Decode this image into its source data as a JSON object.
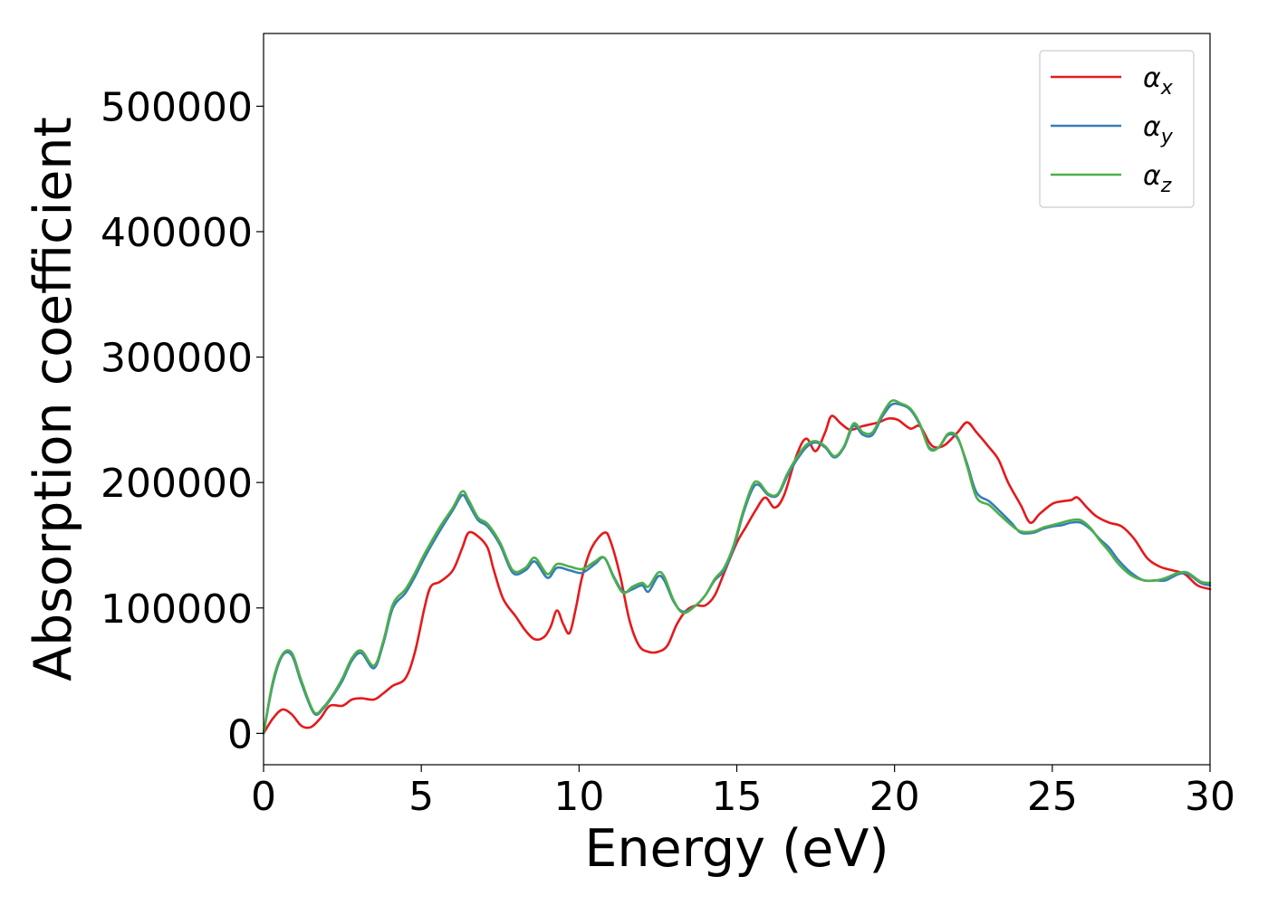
{
  "chart_data": {
    "type": "line",
    "title": "",
    "xlabel": "Energy (eV)",
    "ylabel": "Absorption coefficient",
    "xlim": [
      0,
      30
    ],
    "ylim": [
      -25000,
      558000
    ],
    "xticks": [
      0,
      5,
      10,
      15,
      20,
      25,
      30
    ],
    "yticks": [
      0,
      100000,
      200000,
      300000,
      400000,
      500000
    ],
    "grid": false,
    "legend_position": "top-right",
    "series": [
      {
        "name": "αx",
        "label_base": "α",
        "label_sub": "x",
        "color": "#e41a1c",
        "points": [
          [
            0,
            0
          ],
          [
            0.3,
            12000
          ],
          [
            0.6,
            19000
          ],
          [
            0.9,
            15000
          ],
          [
            1.2,
            6000
          ],
          [
            1.5,
            5000
          ],
          [
            1.8,
            12000
          ],
          [
            2.1,
            22000
          ],
          [
            2.5,
            22000
          ],
          [
            2.8,
            27000
          ],
          [
            3.1,
            28000
          ],
          [
            3.5,
            27000
          ],
          [
            3.8,
            32000
          ],
          [
            4.1,
            38000
          ],
          [
            4.5,
            44000
          ],
          [
            4.8,
            65000
          ],
          [
            5.1,
            100000
          ],
          [
            5.3,
            117000
          ],
          [
            5.6,
            121000
          ],
          [
            6.0,
            130000
          ],
          [
            6.3,
            148000
          ],
          [
            6.5,
            160000
          ],
          [
            6.8,
            157000
          ],
          [
            7.1,
            148000
          ],
          [
            7.3,
            130000
          ],
          [
            7.6,
            107000
          ],
          [
            8.0,
            93000
          ],
          [
            8.3,
            82000
          ],
          [
            8.6,
            75000
          ],
          [
            8.9,
            77000
          ],
          [
            9.1,
            85000
          ],
          [
            9.3,
            98000
          ],
          [
            9.5,
            87000
          ],
          [
            9.7,
            80000
          ],
          [
            9.9,
            100000
          ],
          [
            10.1,
            125000
          ],
          [
            10.4,
            148000
          ],
          [
            10.8,
            160000
          ],
          [
            11.0,
            153000
          ],
          [
            11.3,
            126000
          ],
          [
            11.6,
            90000
          ],
          [
            11.9,
            70000
          ],
          [
            12.2,
            65000
          ],
          [
            12.5,
            65000
          ],
          [
            12.8,
            70000
          ],
          [
            13.1,
            87000
          ],
          [
            13.4,
            98000
          ],
          [
            13.7,
            102000
          ],
          [
            14.0,
            102000
          ],
          [
            14.3,
            110000
          ],
          [
            14.6,
            128000
          ],
          [
            15.0,
            152000
          ],
          [
            15.3,
            165000
          ],
          [
            15.6,
            178000
          ],
          [
            15.9,
            188000
          ],
          [
            16.2,
            180000
          ],
          [
            16.5,
            190000
          ],
          [
            16.9,
            222000
          ],
          [
            17.2,
            235000
          ],
          [
            17.5,
            225000
          ],
          [
            17.8,
            240000
          ],
          [
            18.0,
            253000
          ],
          [
            18.3,
            247000
          ],
          [
            18.6,
            242000
          ],
          [
            19.0,
            245000
          ],
          [
            19.5,
            248000
          ],
          [
            19.8,
            251000
          ],
          [
            20.1,
            250000
          ],
          [
            20.5,
            243000
          ],
          [
            20.8,
            245000
          ],
          [
            21.1,
            232000
          ],
          [
            21.3,
            228000
          ],
          [
            21.6,
            230000
          ],
          [
            22.0,
            240000
          ],
          [
            22.3,
            248000
          ],
          [
            22.6,
            240000
          ],
          [
            23.0,
            228000
          ],
          [
            23.3,
            218000
          ],
          [
            23.6,
            200000
          ],
          [
            24.0,
            182000
          ],
          [
            24.3,
            168000
          ],
          [
            24.6,
            175000
          ],
          [
            25.0,
            183000
          ],
          [
            25.3,
            185000
          ],
          [
            25.6,
            186000
          ],
          [
            25.8,
            188000
          ],
          [
            26.1,
            180000
          ],
          [
            26.4,
            173000
          ],
          [
            26.8,
            168000
          ],
          [
            27.2,
            165000
          ],
          [
            27.6,
            155000
          ],
          [
            28.0,
            140000
          ],
          [
            28.4,
            133000
          ],
          [
            28.8,
            130000
          ],
          [
            29.2,
            127000
          ],
          [
            29.6,
            118000
          ],
          [
            30.0,
            115000
          ]
        ]
      },
      {
        "name": "αy",
        "label_base": "α",
        "label_sub": "y",
        "color": "#377eb8",
        "points": [
          [
            0,
            0
          ],
          [
            0.3,
            40000
          ],
          [
            0.6,
            62000
          ],
          [
            0.9,
            62000
          ],
          [
            1.2,
            40000
          ],
          [
            1.6,
            16000
          ],
          [
            1.9,
            20000
          ],
          [
            2.2,
            30000
          ],
          [
            2.5,
            42000
          ],
          [
            2.8,
            58000
          ],
          [
            3.1,
            64000
          ],
          [
            3.5,
            52000
          ],
          [
            3.8,
            72000
          ],
          [
            4.1,
            100000
          ],
          [
            4.5,
            112000
          ],
          [
            4.8,
            125000
          ],
          [
            5.1,
            140000
          ],
          [
            5.6,
            162000
          ],
          [
            6.0,
            178000
          ],
          [
            6.3,
            190000
          ],
          [
            6.5,
            183000
          ],
          [
            6.8,
            170000
          ],
          [
            7.1,
            165000
          ],
          [
            7.5,
            150000
          ],
          [
            7.9,
            128000
          ],
          [
            8.3,
            130000
          ],
          [
            8.6,
            137000
          ],
          [
            9.0,
            124000
          ],
          [
            9.3,
            132000
          ],
          [
            9.7,
            130000
          ],
          [
            10.1,
            128000
          ],
          [
            10.5,
            135000
          ],
          [
            10.8,
            140000
          ],
          [
            11.1,
            125000
          ],
          [
            11.4,
            113000
          ],
          [
            11.7,
            115000
          ],
          [
            12.0,
            118000
          ],
          [
            12.2,
            113000
          ],
          [
            12.5,
            125000
          ],
          [
            12.7,
            122000
          ],
          [
            13.0,
            105000
          ],
          [
            13.3,
            97000
          ],
          [
            13.7,
            102000
          ],
          [
            14.0,
            110000
          ],
          [
            14.3,
            122000
          ],
          [
            14.6,
            130000
          ],
          [
            14.9,
            148000
          ],
          [
            15.2,
            175000
          ],
          [
            15.5,
            195000
          ],
          [
            15.7,
            198000
          ],
          [
            16.0,
            190000
          ],
          [
            16.3,
            190000
          ],
          [
            16.6,
            205000
          ],
          [
            16.9,
            218000
          ],
          [
            17.2,
            228000
          ],
          [
            17.5,
            232000
          ],
          [
            17.8,
            228000
          ],
          [
            18.1,
            220000
          ],
          [
            18.4,
            228000
          ],
          [
            18.7,
            245000
          ],
          [
            19.0,
            238000
          ],
          [
            19.3,
            238000
          ],
          [
            19.6,
            252000
          ],
          [
            19.9,
            262000
          ],
          [
            20.2,
            262000
          ],
          [
            20.5,
            258000
          ],
          [
            20.8,
            246000
          ],
          [
            21.1,
            228000
          ],
          [
            21.4,
            228000
          ],
          [
            21.7,
            238000
          ],
          [
            22.0,
            235000
          ],
          [
            22.3,
            215000
          ],
          [
            22.6,
            192000
          ],
          [
            23.0,
            185000
          ],
          [
            23.3,
            178000
          ],
          [
            23.7,
            168000
          ],
          [
            24.0,
            160000
          ],
          [
            24.4,
            160000
          ],
          [
            24.7,
            163000
          ],
          [
            25.0,
            165000
          ],
          [
            25.3,
            166000
          ],
          [
            25.6,
            168000
          ],
          [
            25.9,
            168000
          ],
          [
            26.2,
            163000
          ],
          [
            26.5,
            155000
          ],
          [
            26.8,
            148000
          ],
          [
            27.1,
            138000
          ],
          [
            27.5,
            128000
          ],
          [
            27.9,
            122000
          ],
          [
            28.3,
            122000
          ],
          [
            28.6,
            122000
          ],
          [
            29.0,
            127000
          ],
          [
            29.3,
            127000
          ],
          [
            29.7,
            120000
          ],
          [
            30.0,
            118000
          ]
        ]
      },
      {
        "name": "αz",
        "label_base": "α",
        "label_sub": "z",
        "color": "#4daf4a",
        "points": [
          [
            0,
            0
          ],
          [
            0.3,
            42000
          ],
          [
            0.6,
            63000
          ],
          [
            0.9,
            64000
          ],
          [
            1.2,
            42000
          ],
          [
            1.6,
            17000
          ],
          [
            1.9,
            21000
          ],
          [
            2.2,
            31000
          ],
          [
            2.5,
            44000
          ],
          [
            2.8,
            60000
          ],
          [
            3.1,
            66000
          ],
          [
            3.5,
            54000
          ],
          [
            3.8,
            74000
          ],
          [
            4.1,
            103000
          ],
          [
            4.5,
            115000
          ],
          [
            4.8,
            128000
          ],
          [
            5.1,
            143000
          ],
          [
            5.6,
            165000
          ],
          [
            6.0,
            180000
          ],
          [
            6.3,
            193000
          ],
          [
            6.5,
            186000
          ],
          [
            6.8,
            172000
          ],
          [
            7.1,
            167000
          ],
          [
            7.5,
            152000
          ],
          [
            7.9,
            130000
          ],
          [
            8.3,
            132000
          ],
          [
            8.6,
            140000
          ],
          [
            9.0,
            127000
          ],
          [
            9.3,
            135000
          ],
          [
            9.7,
            133000
          ],
          [
            10.1,
            131000
          ],
          [
            10.5,
            137000
          ],
          [
            10.8,
            140000
          ],
          [
            11.1,
            124000
          ],
          [
            11.4,
            112000
          ],
          [
            11.7,
            117000
          ],
          [
            12.0,
            120000
          ],
          [
            12.2,
            117000
          ],
          [
            12.5,
            128000
          ],
          [
            12.7,
            125000
          ],
          [
            13.0,
            106000
          ],
          [
            13.3,
            96000
          ],
          [
            13.7,
            102000
          ],
          [
            14.0,
            110000
          ],
          [
            14.3,
            123000
          ],
          [
            14.6,
            132000
          ],
          [
            14.9,
            150000
          ],
          [
            15.2,
            177000
          ],
          [
            15.5,
            198000
          ],
          [
            15.7,
            200000
          ],
          [
            16.0,
            191000
          ],
          [
            16.3,
            191000
          ],
          [
            16.6,
            207000
          ],
          [
            16.9,
            220000
          ],
          [
            17.2,
            230000
          ],
          [
            17.5,
            233000
          ],
          [
            17.8,
            229000
          ],
          [
            18.1,
            221000
          ],
          [
            18.4,
            229000
          ],
          [
            18.7,
            247000
          ],
          [
            19.0,
            240000
          ],
          [
            19.3,
            240000
          ],
          [
            19.6,
            254000
          ],
          [
            19.9,
            265000
          ],
          [
            20.2,
            263000
          ],
          [
            20.5,
            259000
          ],
          [
            20.8,
            247000
          ],
          [
            21.1,
            227000
          ],
          [
            21.4,
            228000
          ],
          [
            21.7,
            239000
          ],
          [
            22.0,
            236000
          ],
          [
            22.3,
            213000
          ],
          [
            22.6,
            188000
          ],
          [
            23.0,
            182000
          ],
          [
            23.3,
            175000
          ],
          [
            23.7,
            166000
          ],
          [
            24.0,
            161000
          ],
          [
            24.4,
            161000
          ],
          [
            24.7,
            164000
          ],
          [
            25.0,
            166000
          ],
          [
            25.3,
            168000
          ],
          [
            25.6,
            170000
          ],
          [
            25.9,
            170000
          ],
          [
            26.2,
            164000
          ],
          [
            26.5,
            154000
          ],
          [
            26.8,
            145000
          ],
          [
            27.1,
            135000
          ],
          [
            27.5,
            126000
          ],
          [
            27.9,
            122000
          ],
          [
            28.3,
            122000
          ],
          [
            28.6,
            124000
          ],
          [
            29.0,
            128000
          ],
          [
            29.3,
            128000
          ],
          [
            29.7,
            121000
          ],
          [
            30.0,
            120000
          ]
        ]
      }
    ]
  }
}
